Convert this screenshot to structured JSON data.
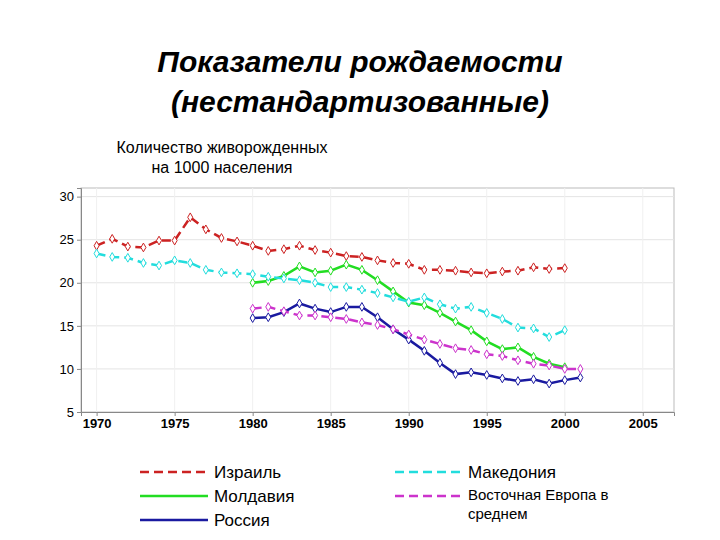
{
  "chart_data": {
    "type": "line",
    "title": [
      "Показатели рождаемости",
      "(нестандартизованные)"
    ],
    "ylabel": [
      "Количество живорожденных",
      "на 1000 населения"
    ],
    "x": [
      1970,
      1971,
      1972,
      1973,
      1974,
      1975,
      1976,
      1977,
      1978,
      1979,
      1980,
      1981,
      1982,
      1983,
      1984,
      1985,
      1986,
      1987,
      1988,
      1989,
      1990,
      1991,
      1992,
      1993,
      1994,
      1995,
      1996,
      1997,
      1998,
      1999,
      2000,
      2001
    ],
    "xlim": [
      1969,
      2007
    ],
    "xticks": [
      1970,
      1975,
      1980,
      1985,
      1990,
      1995,
      2000,
      2005
    ],
    "ylim": [
      5,
      31
    ],
    "yticks": [
      5,
      10,
      15,
      20,
      25,
      30
    ],
    "grid": true,
    "legend": "bottom",
    "marker": "diamond",
    "series": [
      {
        "name": "Израиль",
        "color": "#cc2222",
        "line_style": "dashed",
        "values": [
          24.3,
          25.1,
          24.2,
          24.1,
          24.9,
          24.9,
          27.6,
          26.2,
          25.2,
          24.8,
          24.3,
          23.7,
          23.9,
          24.3,
          23.8,
          23.5,
          23.1,
          23.0,
          22.6,
          22.3,
          22.2,
          21.5,
          21.5,
          21.4,
          21.2,
          21.1,
          21.3,
          21.4,
          21.8,
          21.6,
          21.7,
          null
        ]
      },
      {
        "name": "Молдавия",
        "color": "#22dd22",
        "line_style": "solid",
        "values": [
          null,
          null,
          null,
          null,
          null,
          null,
          null,
          null,
          null,
          null,
          20.0,
          20.2,
          20.8,
          21.9,
          21.2,
          21.4,
          22.1,
          21.5,
          20.3,
          19.0,
          17.7,
          17.4,
          16.5,
          15.5,
          14.5,
          13.2,
          12.3,
          12.5,
          11.4,
          10.6,
          10.2,
          null
        ]
      },
      {
        "name": "Россия",
        "color": "#1a1aa0",
        "line_style": "solid",
        "values": [
          null,
          null,
          null,
          null,
          null,
          null,
          null,
          null,
          null,
          null,
          15.9,
          16.0,
          16.6,
          17.6,
          17.0,
          16.6,
          17.2,
          17.2,
          16.0,
          14.6,
          13.4,
          12.1,
          10.7,
          9.4,
          9.6,
          9.3,
          8.9,
          8.6,
          8.8,
          8.3,
          8.7,
          9.0
        ]
      },
      {
        "name": "Македония",
        "color": "#22dddd",
        "line_style": "dashed",
        "values": [
          23.4,
          23.0,
          22.9,
          22.3,
          22.0,
          22.6,
          22.3,
          21.5,
          21.2,
          21.1,
          21.0,
          20.7,
          20.5,
          20.3,
          20.0,
          19.5,
          19.5,
          19.2,
          18.8,
          18.3,
          17.8,
          18.3,
          17.5,
          17.0,
          17.2,
          16.5,
          15.8,
          14.8,
          14.7,
          13.7,
          14.5,
          null
        ]
      },
      {
        "name": "Восточная Европа в среднем",
        "color": "#cc33cc",
        "line_style": "dashed",
        "values": [
          null,
          null,
          null,
          null,
          null,
          null,
          null,
          null,
          null,
          null,
          17.0,
          17.2,
          16.7,
          16.2,
          16.2,
          16.0,
          15.8,
          15.4,
          15.1,
          14.6,
          14.0,
          13.4,
          12.9,
          12.4,
          12.2,
          11.7,
          11.5,
          11.0,
          10.6,
          10.4,
          10.0,
          10.0
        ]
      }
    ]
  }
}
